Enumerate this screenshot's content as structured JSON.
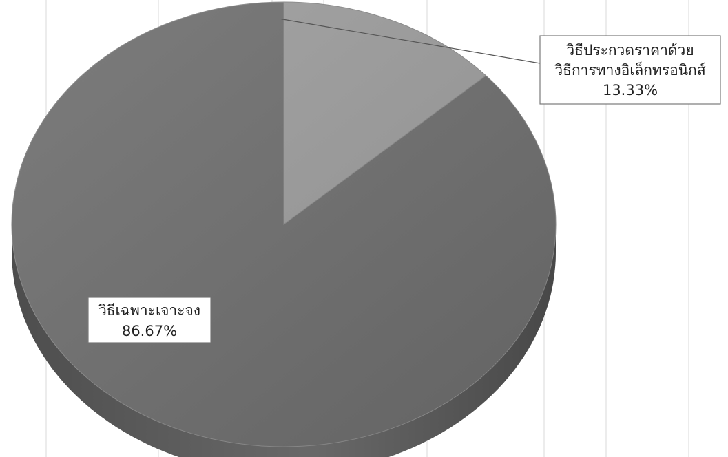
{
  "chart_data": {
    "type": "pie",
    "style": "3d",
    "title": "",
    "slices": [
      {
        "label_lines": [
          "วิธีประกวดราคาด้วย",
          "วิธีการทางอิเล็กทรอนิกส์"
        ],
        "value": 13.33,
        "display_value": "13.33%",
        "color": "#9c9c9c"
      },
      {
        "label_lines": [
          "วิธีเฉพาะเจาะจง"
        ],
        "value": 86.67,
        "display_value": "86.67%",
        "color": "#6e6e6e"
      }
    ],
    "legend": "none",
    "grid": true
  }
}
